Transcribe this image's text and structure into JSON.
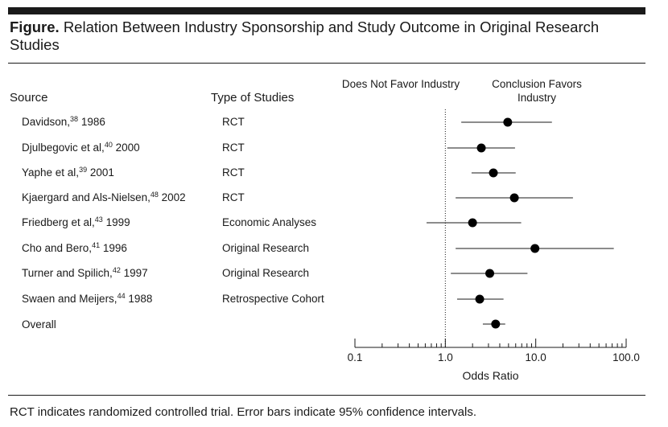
{
  "figure": {
    "label": "Figure.",
    "title": "Relation Between Industry Sponsorship and Study Outcome in Original Research Studies"
  },
  "columns": {
    "source": "Source",
    "type": "Type of Studies",
    "left_favor": "Does Not Favor Industry",
    "right_favor": "Conclusion Favors Industry"
  },
  "rows": [
    {
      "author": "Davidson,",
      "ref": "38",
      "year": " 1986",
      "type": "RCT"
    },
    {
      "author": "Djulbegovic et al,",
      "ref": "40",
      "year": " 2000",
      "type": "RCT"
    },
    {
      "author": "Yaphe et al,",
      "ref": "39",
      "year": " 2001",
      "type": "RCT"
    },
    {
      "author": "Kjaergard and Als-Nielsen,",
      "ref": "48",
      "year": " 2002",
      "type": "RCT"
    },
    {
      "author": "Friedberg et al,",
      "ref": "43",
      "year": " 1999",
      "type": "Economic Analyses"
    },
    {
      "author": "Cho and Bero,",
      "ref": "41",
      "year": " 1996",
      "type": "Original Research"
    },
    {
      "author": "Turner and Spilich,",
      "ref": "42",
      "year": " 1997",
      "type": "Original Research"
    },
    {
      "author": "Swaen and Meijers,",
      "ref": "44",
      "year": " 1988",
      "type": "Retrospective Cohort"
    },
    {
      "author": "Overall",
      "ref": "",
      "year": "",
      "type": ""
    }
  ],
  "chart_data": {
    "type": "scatter",
    "subtype": "forest-plot",
    "xscale": "log",
    "xlim": [
      0.1,
      100
    ],
    "xlabel": "Odds Ratio",
    "xticks": [
      0.1,
      1.0,
      10.0,
      100.0
    ],
    "xtick_labels": [
      "0.1",
      "1.0",
      "10.0",
      "100.0"
    ],
    "reference_line": 1.0,
    "series": [
      {
        "name": "Davidson 1986",
        "or": 4.9,
        "ci_low": 1.5,
        "ci_high": 15.1
      },
      {
        "name": "Djulbegovic et al 2000",
        "or": 2.5,
        "ci_low": 1.05,
        "ci_high": 5.9
      },
      {
        "name": "Yaphe et al 2001",
        "or": 3.4,
        "ci_low": 1.95,
        "ci_high": 6.0
      },
      {
        "name": "Kjaergard and Als-Nielsen 2002",
        "or": 5.8,
        "ci_low": 1.3,
        "ci_high": 25.8
      },
      {
        "name": "Friedberg et al 1999",
        "or": 2.0,
        "ci_low": 0.62,
        "ci_high": 6.9
      },
      {
        "name": "Cho and Bero 1996",
        "or": 9.8,
        "ci_low": 1.3,
        "ci_high": 73.0
      },
      {
        "name": "Turner and Spilich 1997",
        "or": 3.1,
        "ci_low": 1.15,
        "ci_high": 8.1
      },
      {
        "name": "Swaen and Meijers 1988",
        "or": 2.4,
        "ci_low": 1.35,
        "ci_high": 4.4
      },
      {
        "name": "Overall",
        "or": 3.6,
        "ci_low": 2.6,
        "ci_high": 4.6
      }
    ]
  },
  "footnote": "RCT indicates randomized controlled trial. Error bars indicate 95% confidence intervals."
}
